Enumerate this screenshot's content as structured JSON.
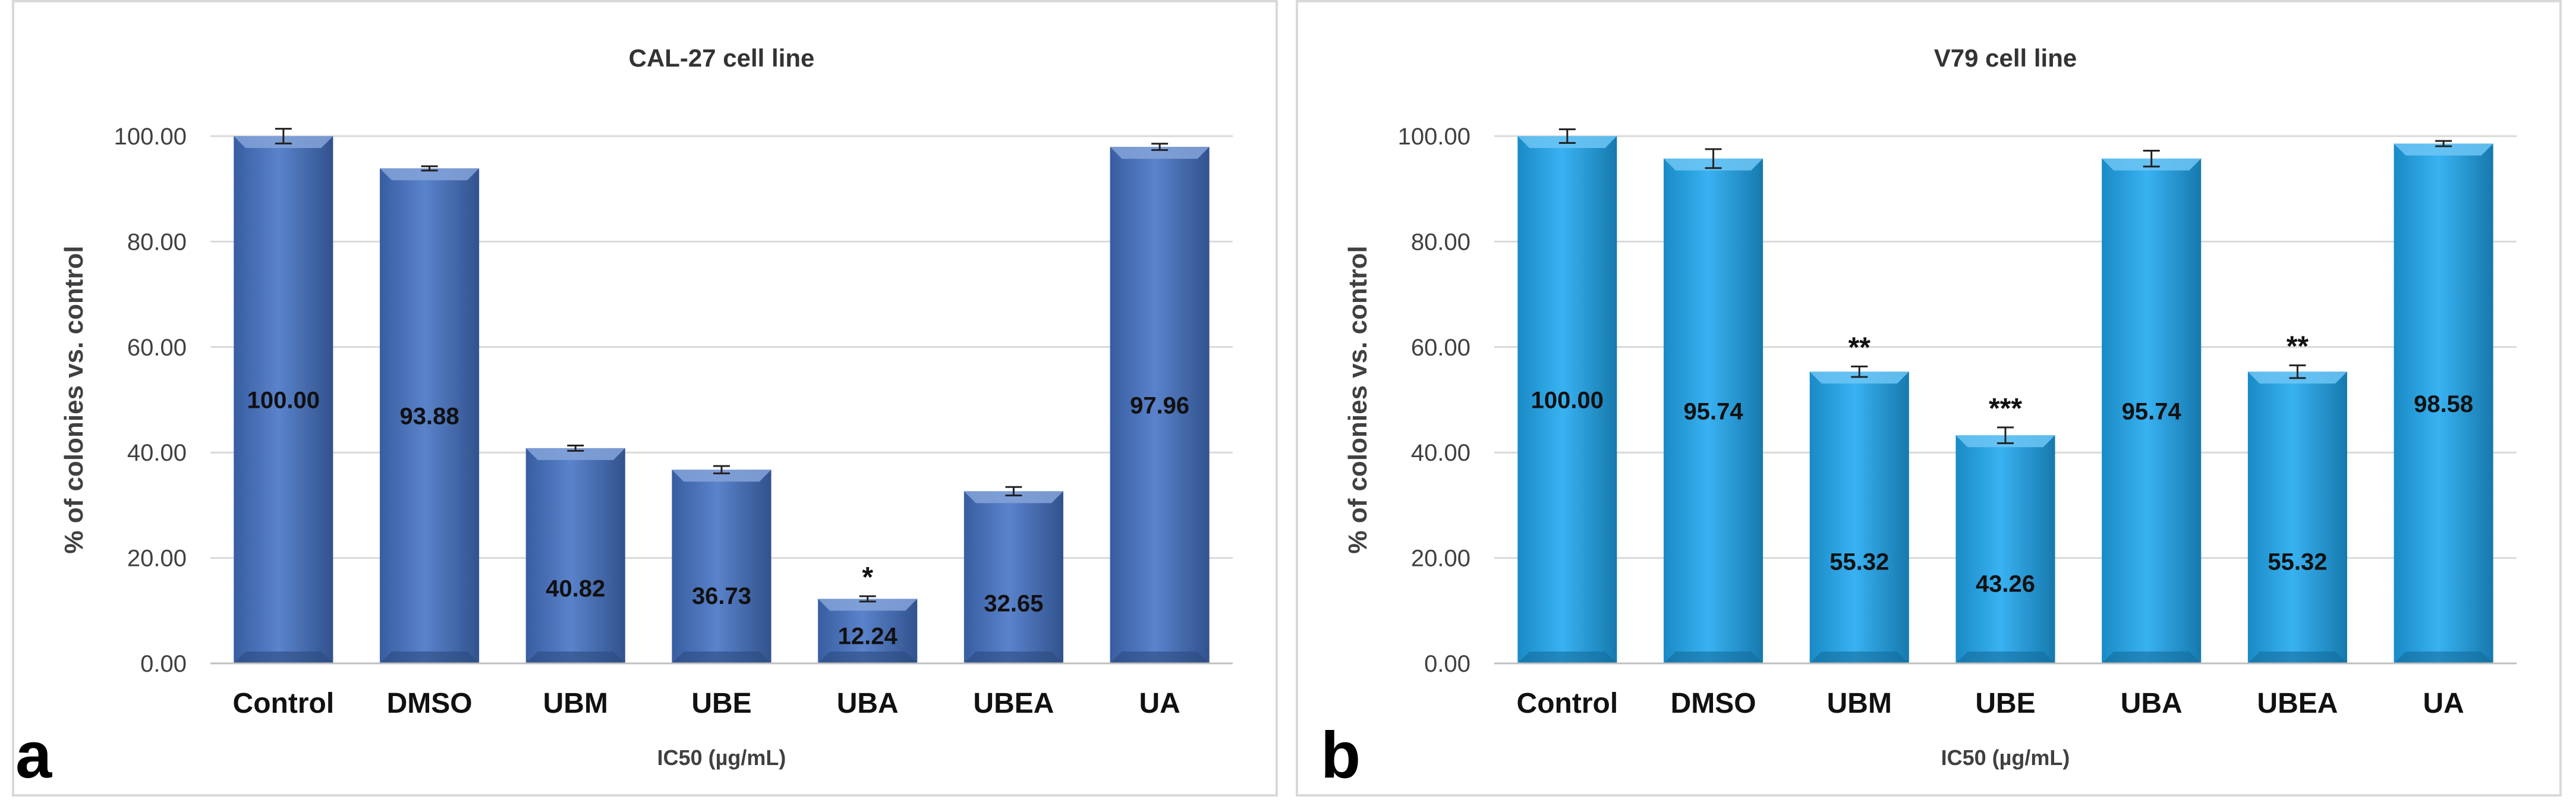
{
  "chart_data": [
    {
      "type": "bar",
      "panel_label": "a",
      "title": "CAL-27 cell line",
      "xlabel": "IC50 (µg/mL)",
      "ylabel": "% of colonies vs. control",
      "ylim": [
        0,
        100
      ],
      "yticks": [
        "0.00",
        "20.00",
        "40.00",
        "60.00",
        "80.00",
        "100.00"
      ],
      "categories": [
        "Control",
        "DMSO",
        "UBM",
        "UBE",
        "UBA",
        "UBEA",
        "UA"
      ],
      "values": [
        100.0,
        93.88,
        40.82,
        36.73,
        12.24,
        32.65,
        97.96
      ],
      "value_labels": [
        "100.00",
        "93.88",
        "40.82",
        "36.73",
        "12.24",
        "32.65",
        "97.96"
      ],
      "errors": [
        1.4,
        0.4,
        0.5,
        0.7,
        0.5,
        0.8,
        0.6
      ],
      "significance": [
        "",
        "",
        "",
        "",
        "*",
        "",
        ""
      ],
      "color": "#4472C4",
      "grid": true
    },
    {
      "type": "bar",
      "panel_label": "b",
      "title": "V79 cell line",
      "xlabel": "IC50 (µg/mL)",
      "ylabel": "% of colonies vs. control",
      "ylim": [
        0,
        100
      ],
      "yticks": [
        "0.00",
        "20.00",
        "40.00",
        "60.00",
        "80.00",
        "100.00"
      ],
      "categories": [
        "Control",
        "DMSO",
        "UBM",
        "UBE",
        "UBA",
        "UBEA",
        "UA"
      ],
      "values": [
        100.0,
        95.74,
        55.32,
        43.26,
        95.74,
        55.32,
        98.58
      ],
      "value_labels": [
        "100.00",
        "95.74",
        "55.32",
        "43.26",
        "95.74",
        "55.32",
        "98.58"
      ],
      "errors": [
        1.3,
        1.8,
        1.0,
        1.5,
        1.5,
        1.2,
        0.5
      ],
      "significance": [
        "",
        "",
        "**",
        "***",
        "",
        "**",
        ""
      ],
      "color": "#1EA8F0",
      "grid": true
    }
  ]
}
